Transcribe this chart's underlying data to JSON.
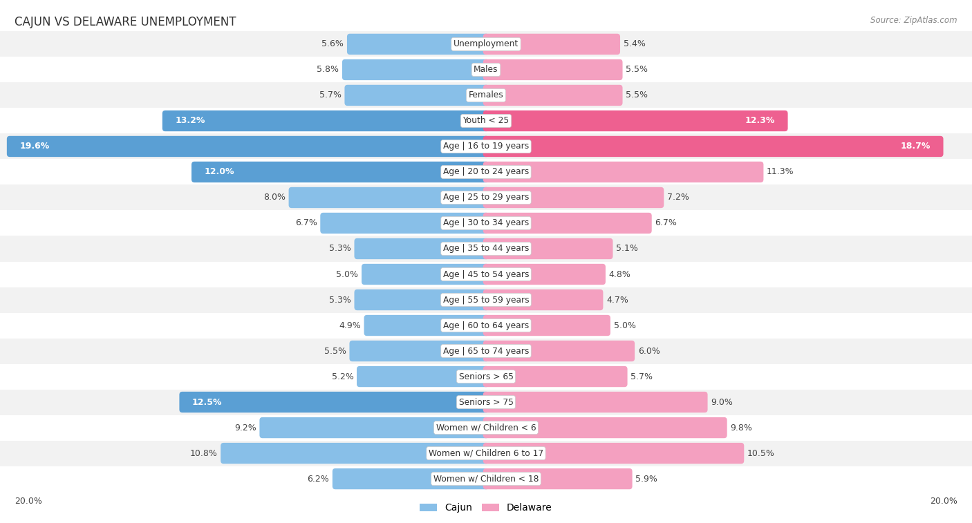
{
  "title": "CAJUN VS DELAWARE UNEMPLOYMENT",
  "source": "Source: ZipAtlas.com",
  "categories": [
    "Unemployment",
    "Males",
    "Females",
    "Youth < 25",
    "Age | 16 to 19 years",
    "Age | 20 to 24 years",
    "Age | 25 to 29 years",
    "Age | 30 to 34 years",
    "Age | 35 to 44 years",
    "Age | 45 to 54 years",
    "Age | 55 to 59 years",
    "Age | 60 to 64 years",
    "Age | 65 to 74 years",
    "Seniors > 65",
    "Seniors > 75",
    "Women w/ Children < 6",
    "Women w/ Children 6 to 17",
    "Women w/ Children < 18"
  ],
  "cajun": [
    5.6,
    5.8,
    5.7,
    13.2,
    19.6,
    12.0,
    8.0,
    6.7,
    5.3,
    5.0,
    5.3,
    4.9,
    5.5,
    5.2,
    12.5,
    9.2,
    10.8,
    6.2
  ],
  "delaware": [
    5.4,
    5.5,
    5.5,
    12.3,
    18.7,
    11.3,
    7.2,
    6.7,
    5.1,
    4.8,
    4.7,
    5.0,
    6.0,
    5.7,
    9.0,
    9.8,
    10.5,
    5.9
  ],
  "cajun_color": "#88BFE8",
  "delaware_color": "#F4A0C0",
  "cajun_color_highlight": "#5A9FD4",
  "delaware_color_highlight": "#EE6090",
  "bg_color": "#ffffff",
  "row_bg_even": "#f2f2f2",
  "row_bg_odd": "#ffffff",
  "max_val": 20.0,
  "bar_height": 0.58,
  "label_fontsize": 9.0,
  "cat_fontsize": 8.8,
  "title_fontsize": 12,
  "source_fontsize": 8.5,
  "highlight_threshold": 11.5
}
